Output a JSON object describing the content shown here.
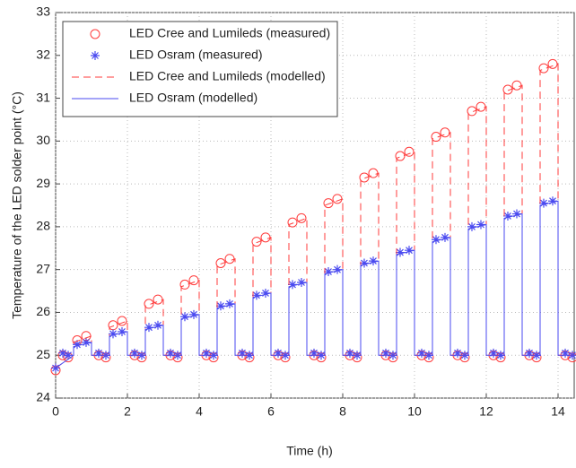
{
  "chart_data": {
    "type": "line",
    "x_label": "Time (h)",
    "y_label": "Temperature of the LED solder point (°C)",
    "xlim": [
      0,
      14.45
    ],
    "ylim": [
      24,
      33
    ],
    "xticks": [
      0,
      2,
      4,
      6,
      8,
      10,
      12,
      14
    ],
    "yticks": [
      24,
      25,
      26,
      27,
      28,
      29,
      30,
      31,
      32,
      33
    ],
    "grid": true,
    "legend": "upper left",
    "series": [
      {
        "name": "LED Cree and Lumileds (measured)",
        "color": "#ff3b3b",
        "marker": "circle",
        "line": "none",
        "x": [
          0,
          0.2,
          0.35,
          0.6,
          0.85,
          1.2,
          1.4,
          1.6,
          1.85,
          2.2,
          2.4,
          2.6,
          2.85,
          3.2,
          3.4,
          3.6,
          3.85,
          4.2,
          4.4,
          4.6,
          4.85,
          5.2,
          5.4,
          5.6,
          5.85,
          6.2,
          6.4,
          6.6,
          6.85,
          7.2,
          7.4,
          7.6,
          7.85,
          8.2,
          8.4,
          8.6,
          8.85,
          9.2,
          9.4,
          9.6,
          9.85,
          10.2,
          10.4,
          10.6,
          10.85,
          11.2,
          11.4,
          11.6,
          11.85,
          12.2,
          12.4,
          12.6,
          12.85,
          13.2,
          13.4,
          13.6,
          13.85,
          14.2,
          14.4
        ],
        "values": [
          24.65,
          25.0,
          24.95,
          25.35,
          25.45,
          25.0,
          24.95,
          25.7,
          25.8,
          25.0,
          24.95,
          26.2,
          26.3,
          25.0,
          24.95,
          26.65,
          26.75,
          25.0,
          24.95,
          27.15,
          27.25,
          25.0,
          24.95,
          27.65,
          27.75,
          25.0,
          24.95,
          28.1,
          28.2,
          25.0,
          24.95,
          28.55,
          28.65,
          25.0,
          24.95,
          29.15,
          29.25,
          25.0,
          24.95,
          29.65,
          29.75,
          25.0,
          24.95,
          30.1,
          30.2,
          25.0,
          24.95,
          30.7,
          30.8,
          25.0,
          24.95,
          31.2,
          31.3,
          25.0,
          24.95,
          31.7,
          31.8,
          25.0,
          24.95
        ]
      },
      {
        "name": "LED Osram (measured)",
        "color": "#4a4af0",
        "marker": "star",
        "line": "none",
        "x": [
          0,
          0.2,
          0.35,
          0.6,
          0.85,
          1.2,
          1.4,
          1.6,
          1.85,
          2.2,
          2.4,
          2.6,
          2.85,
          3.2,
          3.4,
          3.6,
          3.85,
          4.2,
          4.4,
          4.6,
          4.85,
          5.2,
          5.4,
          5.6,
          5.85,
          6.2,
          6.4,
          6.6,
          6.85,
          7.2,
          7.4,
          7.6,
          7.85,
          8.2,
          8.4,
          8.6,
          8.85,
          9.2,
          9.4,
          9.6,
          9.85,
          10.2,
          10.4,
          10.6,
          10.85,
          11.2,
          11.4,
          11.6,
          11.85,
          12.2,
          12.4,
          12.6,
          12.85,
          13.2,
          13.4,
          13.6,
          13.85,
          14.2,
          14.4
        ],
        "values": [
          24.7,
          25.05,
          25.0,
          25.25,
          25.3,
          25.05,
          25.0,
          25.5,
          25.55,
          25.05,
          25.0,
          25.65,
          25.7,
          25.05,
          25.0,
          25.9,
          25.95,
          25.05,
          25.0,
          26.15,
          26.2,
          25.05,
          25.0,
          26.4,
          26.45,
          25.05,
          25.0,
          26.65,
          26.7,
          25.05,
          25.0,
          26.95,
          27.0,
          25.05,
          25.0,
          27.15,
          27.2,
          25.05,
          25.0,
          27.4,
          27.45,
          25.05,
          25.0,
          27.7,
          27.75,
          25.05,
          25.0,
          28.0,
          28.05,
          25.05,
          25.0,
          28.25,
          28.3,
          25.05,
          25.0,
          28.55,
          28.6,
          25.05,
          25.0
        ]
      },
      {
        "name": "LED Cree and Lumileds (modelled)",
        "color": "#ff3b3b",
        "marker": "none",
        "line": "dashed",
        "x": [
          0,
          0.5,
          0.5,
          1,
          1,
          1.5,
          1.5,
          2,
          2,
          2.5,
          2.5,
          3,
          3,
          3.5,
          3.5,
          4,
          4,
          4.5,
          4.5,
          5,
          5,
          5.5,
          5.5,
          6,
          6,
          6.5,
          6.5,
          7,
          7,
          7.5,
          7.5,
          8,
          8,
          8.5,
          8.5,
          9,
          9,
          9.5,
          9.5,
          10,
          10,
          10.5,
          10.5,
          11,
          11,
          11.5,
          11.5,
          12,
          12,
          12.5,
          12.5,
          13,
          13,
          13.5,
          13.5,
          14,
          14,
          14.45
        ],
        "values": [
          24.7,
          25,
          25.3,
          25.45,
          25,
          25,
          25.65,
          25.8,
          25,
          25,
          26.15,
          26.3,
          25,
          25,
          26.6,
          26.75,
          25,
          25,
          27.1,
          27.25,
          25,
          25,
          27.6,
          27.75,
          25,
          25,
          28.05,
          28.2,
          25,
          25,
          28.5,
          28.65,
          25,
          25,
          29.1,
          29.25,
          25,
          25,
          29.6,
          29.75,
          25,
          25,
          30.05,
          30.2,
          25,
          25,
          30.65,
          30.8,
          25,
          25,
          31.15,
          31.3,
          25,
          25,
          31.65,
          31.8,
          25,
          25
        ]
      },
      {
        "name": "LED Osram (modelled)",
        "color": "#4a4af0",
        "marker": "none",
        "line": "solid",
        "x": [
          0,
          0.5,
          0.5,
          1,
          1,
          1.5,
          1.5,
          2,
          2,
          2.5,
          2.5,
          3,
          3,
          3.5,
          3.5,
          4,
          4,
          4.5,
          4.5,
          5,
          5,
          5.5,
          5.5,
          6,
          6,
          6.5,
          6.5,
          7,
          7,
          7.5,
          7.5,
          8,
          8,
          8.5,
          8.5,
          9,
          9,
          9.5,
          9.5,
          10,
          10,
          10.5,
          10.5,
          11,
          11,
          11.5,
          11.5,
          12,
          12,
          12.5,
          12.5,
          13,
          13,
          13.5,
          13.5,
          14,
          14,
          14.45
        ],
        "values": [
          24.7,
          25,
          25.2,
          25.3,
          25,
          25,
          25.45,
          25.55,
          25,
          25,
          25.6,
          25.7,
          25,
          25,
          25.85,
          25.95,
          25,
          25,
          26.1,
          26.2,
          25,
          25,
          26.35,
          26.45,
          25,
          25,
          26.6,
          26.7,
          25,
          25,
          26.9,
          27.0,
          25,
          25,
          27.1,
          27.2,
          25,
          25,
          27.35,
          27.45,
          25,
          25,
          27.65,
          27.75,
          25,
          25,
          27.95,
          28.05,
          25,
          25,
          28.2,
          28.3,
          25,
          25,
          28.5,
          28.6,
          25,
          25
        ]
      }
    ]
  }
}
